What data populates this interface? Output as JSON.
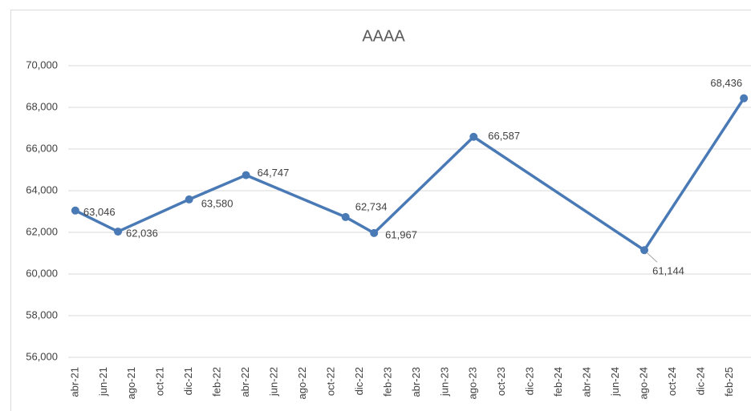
{
  "chart_data": {
    "type": "line",
    "title": "AAAA",
    "categories": [
      "abr-21",
      null,
      "jun-21",
      null,
      "ago-21",
      null,
      "oct-21",
      null,
      "dic-21",
      null,
      "feb-22",
      null,
      "abr-22",
      null,
      "jun-22",
      null,
      "ago-22",
      null,
      "oct-22",
      null,
      "dic-22",
      null,
      "feb-23",
      null,
      "abr-23",
      null,
      "jun-23",
      null,
      "ago-23",
      null,
      "oct-23",
      null,
      "dic-23",
      null,
      "feb-24",
      null,
      "abr-24",
      null,
      "jun-24",
      null,
      "ago-24",
      null,
      "oct-24",
      null,
      "dic-24",
      null,
      "feb-25",
      null
    ],
    "series": [
      {
        "name": "AAAA",
        "color": "#4a7ab5",
        "values": [
          63046,
          null,
          null,
          62036,
          null,
          null,
          null,
          null,
          63580,
          null,
          null,
          null,
          64747,
          null,
          null,
          null,
          null,
          null,
          null,
          62734,
          null,
          61967,
          null,
          null,
          null,
          null,
          null,
          null,
          66587,
          null,
          null,
          null,
          null,
          null,
          null,
          null,
          null,
          null,
          null,
          null,
          61144,
          null,
          null,
          null,
          null,
          null,
          null,
          68436
        ],
        "value_labels": [
          "63,046",
          null,
          null,
          "62,036",
          null,
          null,
          null,
          null,
          "63,580",
          null,
          null,
          null,
          "64,747",
          null,
          null,
          null,
          null,
          null,
          null,
          "62,734",
          null,
          "61,967",
          null,
          null,
          null,
          null,
          null,
          null,
          "66,587",
          null,
          null,
          null,
          null,
          null,
          null,
          null,
          null,
          null,
          null,
          null,
          "61,144",
          null,
          null,
          null,
          null,
          null,
          null,
          "68,436"
        ]
      }
    ],
    "ylim": [
      56000,
      70000
    ],
    "yticks": [
      {
        "value": 56000,
        "label": "56,000"
      },
      {
        "value": 58000,
        "label": "58,000"
      },
      {
        "value": 60000,
        "label": "60,000"
      },
      {
        "value": 62000,
        "label": "62,000"
      },
      {
        "value": 64000,
        "label": "64,000"
      },
      {
        "value": 66000,
        "label": "66,000"
      },
      {
        "value": 68000,
        "label": "68,000"
      },
      {
        "value": 70000,
        "label": "70,000"
      }
    ],
    "grid": true
  }
}
